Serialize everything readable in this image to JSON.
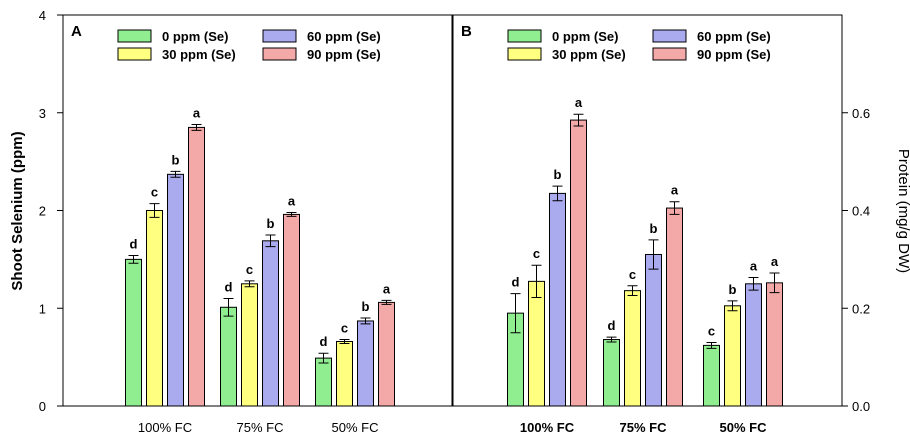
{
  "colors": {
    "0 ppm (Se)": "#90ee90",
    "30 ppm (Se)": "#ffff80",
    "60 ppm (Se)": "#aaaaee",
    "90 ppm  (Se)": "#f4a9a9",
    "axis": "#000000"
  },
  "chart_data": [
    {
      "type": "bar",
      "panel_label": "A",
      "ylabel": "Shoot Selenium (ppm)",
      "yaxis_side": "left",
      "ylim": [
        0,
        4
      ],
      "yticks": [
        "0",
        "1",
        "2",
        "3",
        "4"
      ],
      "categories": [
        "100% FC",
        "75% FC",
        "50% FC"
      ],
      "category_labels_bold": false,
      "legend_position": "top-left",
      "series": [
        {
          "name": "0 ppm (Se)",
          "values": [
            1.5,
            1.01,
            0.49
          ],
          "errors": [
            0.04,
            0.09,
            0.05
          ],
          "sig": [
            "d",
            "d",
            "d"
          ]
        },
        {
          "name": "30 ppm (Se)",
          "values": [
            2.0,
            1.25,
            0.66
          ],
          "errors": [
            0.07,
            0.03,
            0.02
          ],
          "sig": [
            "c",
            "c",
            "c"
          ]
        },
        {
          "name": "60 ppm (Se)",
          "values": [
            2.37,
            1.69,
            0.87
          ],
          "errors": [
            0.03,
            0.06,
            0.03
          ],
          "sig": [
            "b",
            "b",
            "b"
          ]
        },
        {
          "name": "90 ppm  (Se)",
          "values": [
            2.85,
            1.96,
            1.06
          ],
          "errors": [
            0.03,
            0.02,
            0.02
          ],
          "sig": [
            "a",
            "a",
            "a"
          ]
        }
      ]
    },
    {
      "type": "bar",
      "panel_label": "B",
      "ylabel": "Protein (mg/g DW)",
      "yaxis_side": "right",
      "ylim": [
        0,
        0.8
      ],
      "yticks": [
        "0.0",
        "0.2",
        "0.4",
        "0.6"
      ],
      "categories": [
        "100% FC",
        "75% FC",
        "50% FC"
      ],
      "category_labels_bold": true,
      "legend_position": "top-left",
      "series": [
        {
          "name": "0 ppm (Se)",
          "values": [
            0.19,
            0.136,
            0.124
          ],
          "errors": [
            0.04,
            0.005,
            0.006
          ],
          "sig": [
            "d",
            "d",
            "c"
          ]
        },
        {
          "name": "30 ppm (Se)",
          "values": [
            0.255,
            0.236,
            0.205
          ],
          "errors": [
            0.033,
            0.01,
            0.01
          ],
          "sig": [
            "c",
            "c",
            "b"
          ]
        },
        {
          "name": "60 ppm (Se)",
          "values": [
            0.435,
            0.31,
            0.25
          ],
          "errors": [
            0.015,
            0.03,
            0.013
          ],
          "sig": [
            "b",
            "b",
            "a"
          ]
        },
        {
          "name": "90 ppm  (Se)",
          "values": [
            0.585,
            0.405,
            0.252
          ],
          "errors": [
            0.012,
            0.013,
            0.02
          ],
          "sig": [
            "a",
            "a",
            "a"
          ]
        }
      ]
    }
  ]
}
